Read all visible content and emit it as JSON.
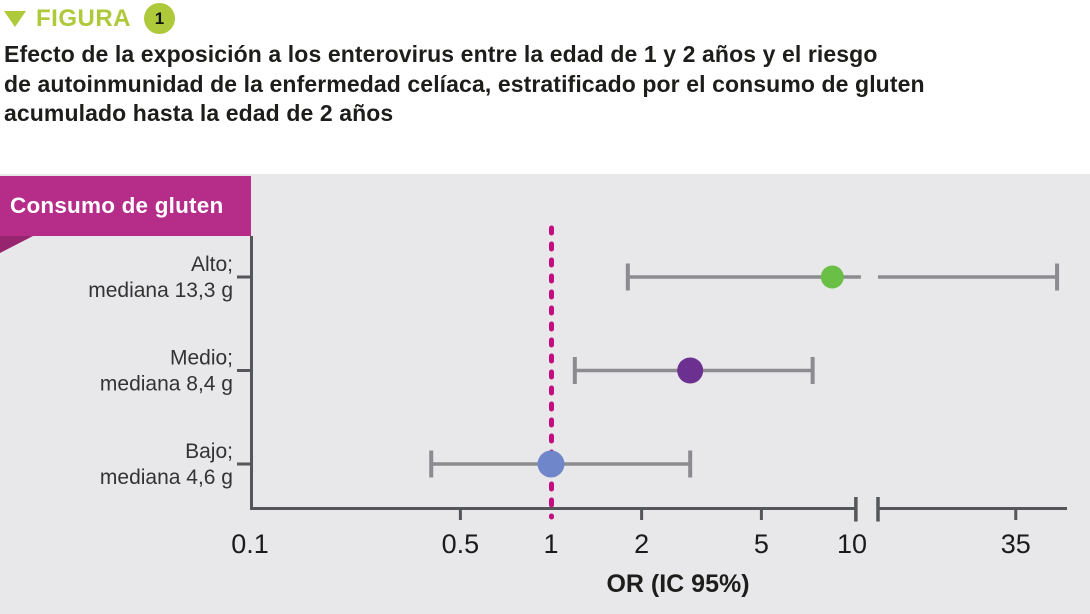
{
  "figure_header": {
    "label": "FIGURA",
    "number": "1",
    "accent_color": "#aec93a"
  },
  "title": "Efecto de la exposición a los enterovirus entre la edad de 1 y 2 años y el riesgo\nde autoinmunidad de la enfermedad celíaca, estratificado por el consumo de gluten\nacumulado hasta la edad de 2 años",
  "chart_data": {
    "type": "scatter",
    "subtype": "forest-plot",
    "title": "Consumo de gluten",
    "xlabel": "OR (IC 95%)",
    "x_scale": "log",
    "xlim": [
      0.1,
      50
    ],
    "x_ticks": [
      0.1,
      0.5,
      1,
      2,
      5,
      10,
      35
    ],
    "x_tick_labels": [
      "0.1",
      "0.5",
      "1",
      "2",
      "5",
      "10",
      "35"
    ],
    "axis_break_between": [
      10.3,
      12.2
    ],
    "reference_line_x": 1,
    "grid": false,
    "categories": [
      {
        "label": "Alto;",
        "sublabel": "mediana 13,3 g",
        "or": 8.6,
        "ci_low": 1.8,
        "ci_high": 48,
        "color": "#6abf47"
      },
      {
        "label": "Medio;",
        "sublabel": "mediana 8,4 g",
        "or": 2.9,
        "ci_low": 1.2,
        "ci_high": 7.4,
        "color": "#6c3090"
      },
      {
        "label": "Bajo;",
        "sublabel": "mediana 4,6 g",
        "or": 1.0,
        "ci_low": 0.4,
        "ci_high": 2.9,
        "color": "#6f87ca"
      }
    ],
    "colors": {
      "panel_bg": "#e8e7e9",
      "header_box": "#b52d89",
      "header_fold": "#97246f",
      "reference_line": "#c20c80",
      "error_bar": "#8c8c90",
      "axis": "#55565a",
      "text": "#1d1d1b"
    }
  }
}
